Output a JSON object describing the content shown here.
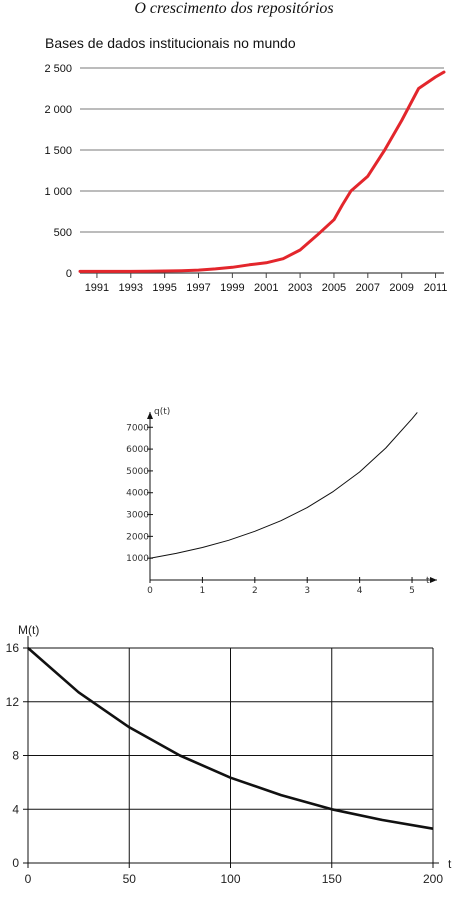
{
  "header": {
    "title": "O crescimento dos repositórios"
  },
  "chart_data": [
    {
      "type": "line",
      "title": "Bases de dados institucionais no mundo",
      "xlabel": "",
      "ylabel": "",
      "x": [
        1990,
        1991,
        1992,
        1993,
        1994,
        1995,
        1996,
        1997,
        1998,
        1999,
        2000,
        2001,
        2002,
        2003,
        2004,
        2005,
        2005.5,
        2006,
        2007,
        2008,
        2009,
        2010,
        2011,
        2011.5
      ],
      "series": [
        {
          "color": "#e3262c",
          "values": [
            20,
            20,
            20,
            20,
            22,
            24,
            28,
            35,
            50,
            70,
            100,
            125,
            175,
            280,
            460,
            650,
            830,
            1000,
            1180,
            1500,
            1860,
            2250,
            2390,
            2450
          ]
        }
      ],
      "xticks": [
        "1991",
        "1993",
        "1995",
        "1997",
        "1999",
        "2001",
        "2003",
        "2005",
        "2007",
        "2009",
        "2011"
      ],
      "yticks": [
        "0",
        "500",
        "1 000",
        "1 500",
        "2 000",
        "2 500"
      ],
      "ylim": [
        0,
        2500
      ],
      "xlim": [
        1990,
        2011.5
      ],
      "grid": "horizontal"
    },
    {
      "type": "line",
      "title": "",
      "ylabel": "q(t)",
      "xlabel": "t",
      "x": [
        0,
        0.5,
        1,
        1.5,
        2,
        2.5,
        3,
        3.5,
        4,
        4.5,
        5,
        5.1
      ],
      "series": [
        {
          "color": "#111111",
          "values": [
            1000,
            1220,
            1490,
            1820,
            2230,
            2720,
            3320,
            4060,
            4950,
            6050,
            7390,
            7680
          ]
        }
      ],
      "xticks": [
        "0",
        "1",
        "2",
        "3",
        "4",
        "5"
      ],
      "yticks": [
        "1000",
        "2000",
        "3000",
        "4000",
        "5000",
        "6000",
        "7000"
      ],
      "xlim": [
        0,
        5.4
      ],
      "ylim": [
        0,
        7700
      ],
      "grid": "none"
    },
    {
      "type": "line",
      "title": "",
      "ylabel": "M(t)",
      "xlabel": "t",
      "x": [
        0,
        25,
        50,
        75,
        100,
        125,
        150,
        175,
        200
      ],
      "series": [
        {
          "color": "#111111",
          "values": [
            16,
            12.7,
            10.1,
            8.0,
            6.35,
            5.05,
            4.0,
            3.2,
            2.55
          ]
        }
      ],
      "xticks": [
        "0",
        "50",
        "100",
        "150",
        "200"
      ],
      "yticks": [
        "0",
        "4",
        "8",
        "12",
        "16"
      ],
      "xlim": [
        0,
        200
      ],
      "ylim": [
        0,
        16
      ],
      "grid": "both"
    }
  ]
}
